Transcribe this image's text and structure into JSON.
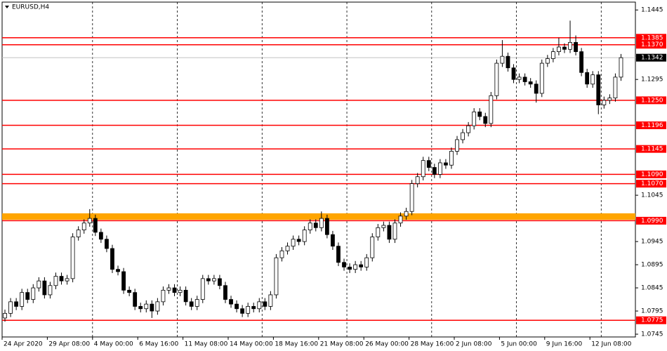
{
  "chart_data": {
    "type": "candlestick",
    "title": "EURUSD,H4",
    "categories": [
      "24 Apr 2020",
      null,
      null,
      null,
      null,
      null,
      null,
      null,
      "29 Apr 08:00",
      null,
      null,
      null,
      null,
      null,
      null,
      null,
      "4 May 00:00",
      null,
      null,
      null,
      null,
      null,
      null,
      null,
      "6 May 16:00",
      null,
      null,
      null,
      null,
      null,
      null,
      null,
      "11 May 08:00",
      null,
      null,
      null,
      null,
      null,
      null,
      null,
      "14 May 00:00",
      null,
      null,
      null,
      null,
      null,
      null,
      null,
      "18 May 16:00",
      null,
      null,
      null,
      null,
      null,
      null,
      null,
      "21 May 08:00",
      null,
      null,
      null,
      null,
      null,
      null,
      null,
      "26 May 00:00",
      null,
      null,
      null,
      null,
      null,
      null,
      null,
      "28 May 16:00",
      null,
      null,
      null,
      null,
      null,
      null,
      null,
      "2 Jun 08:00",
      null,
      null,
      null,
      null,
      null,
      null,
      null,
      "5 Jun 00:00",
      null,
      null,
      null,
      null,
      null,
      null,
      null,
      "9 Jun 16:00",
      null,
      null,
      null,
      null,
      null,
      null,
      null,
      "12 Jun 08:00",
      null,
      null,
      null,
      null,
      null
    ],
    "open": [
      1.078,
      1.079,
      1.0815,
      1.0805,
      1.0835,
      1.082,
      1.0845,
      1.086,
      1.083,
      1.085,
      1.087,
      1.086,
      1.0865,
      1.0955,
      1.097,
      1.0985,
      1.0995,
      1.0965,
      1.095,
      1.093,
      1.0885,
      1.088,
      1.084,
      1.0835,
      1.0805,
      1.08,
      1.081,
      1.0795,
      1.0815,
      1.084,
      1.0845,
      1.0835,
      1.084,
      1.0815,
      1.0805,
      1.082,
      1.0865,
      1.086,
      1.0865,
      1.085,
      1.082,
      1.081,
      1.08,
      1.079,
      1.0805,
      1.08,
      1.0815,
      1.0805,
      1.083,
      1.091,
      1.0925,
      1.0935,
      1.095,
      1.0945,
      1.097,
      1.0985,
      1.0975,
      1.0995,
      1.096,
      1.0935,
      1.09,
      1.089,
      1.0885,
      1.0895,
      1.089,
      1.091,
      1.0955,
      1.0975,
      1.098,
      1.095,
      1.0985,
      1.1,
      1.101,
      1.107,
      1.1085,
      1.112,
      1.1105,
      1.109,
      1.1115,
      1.111,
      1.114,
      1.1165,
      1.118,
      1.1195,
      1.1225,
      1.1215,
      1.12,
      1.126,
      1.133,
      1.1345,
      1.132,
      1.1295,
      1.13,
      1.129,
      1.1285,
      1.1265,
      1.133,
      1.134,
      1.1355,
      1.1365,
      1.136,
      1.1375,
      1.1355,
      1.131,
      1.1285,
      1.1305,
      1.124,
      1.125,
      1.1255,
      1.13
    ],
    "high": [
      1.0798,
      1.0823,
      1.0823,
      1.0843,
      1.0843,
      1.0853,
      1.0868,
      1.0868,
      1.0858,
      1.0878,
      1.0878,
      1.0873,
      1.0963,
      1.0978,
      1.0993,
      1.1015,
      1.1003,
      1.0973,
      1.0958,
      1.0938,
      1.0893,
      1.0888,
      1.0848,
      1.0843,
      1.0813,
      1.0818,
      1.0818,
      1.0823,
      1.0848,
      1.0853,
      1.0853,
      1.0848,
      1.0848,
      1.0823,
      1.0828,
      1.0873,
      1.0873,
      1.0873,
      1.0873,
      1.0858,
      1.0828,
      1.0818,
      1.0808,
      1.0813,
      1.0813,
      1.0823,
      1.0823,
      1.0838,
      1.0918,
      1.0933,
      1.0943,
      1.0958,
      1.0958,
      1.0978,
      1.0993,
      1.0993,
      1.101,
      1.1003,
      1.0968,
      1.0943,
      1.0908,
      1.0898,
      1.0903,
      1.0903,
      1.0918,
      1.0963,
      1.0983,
      1.0988,
      1.0988,
      1.0993,
      1.1008,
      1.1018,
      1.1078,
      1.1093,
      1.1128,
      1.1128,
      1.1113,
      1.1123,
      1.1123,
      1.1148,
      1.1173,
      1.1188,
      1.1203,
      1.1233,
      1.1233,
      1.1223,
      1.1268,
      1.1338,
      1.138,
      1.1353,
      1.1328,
      1.1308,
      1.1308,
      1.1298,
      1.1293,
      1.1338,
      1.1348,
      1.1363,
      1.1385,
      1.1373,
      1.1422,
      1.139,
      1.1363,
      1.1318,
      1.1313,
      1.1313,
      1.1258,
      1.1263,
      1.1308,
      1.135
    ],
    "low": [
      1.0772,
      1.0782,
      1.0797,
      1.0797,
      1.0812,
      1.0812,
      1.0837,
      1.0822,
      1.0822,
      1.0842,
      1.0852,
      1.0852,
      1.0857,
      1.0947,
      1.0962,
      1.0977,
      1.0957,
      1.0942,
      1.0922,
      1.0877,
      1.0872,
      1.0832,
      1.0827,
      1.0797,
      1.0792,
      1.0792,
      1.078,
      1.0787,
      1.0807,
      1.0832,
      1.0827,
      1.0827,
      1.0807,
      1.0797,
      1.0797,
      1.0812,
      1.0852,
      1.0852,
      1.0842,
      1.0812,
      1.0802,
      1.0792,
      1.0782,
      1.0782,
      1.0792,
      1.0792,
      1.0797,
      1.0797,
      1.0822,
      1.0902,
      1.0917,
      1.0927,
      1.0937,
      1.0937,
      1.0962,
      1.0967,
      1.0967,
      1.0952,
      1.0927,
      1.0892,
      1.0882,
      1.0877,
      1.0877,
      1.0882,
      1.0882,
      1.0902,
      1.0947,
      1.0967,
      1.0942,
      1.0942,
      1.0977,
      1.0992,
      1.1002,
      1.1062,
      1.1077,
      1.1097,
      1.1082,
      1.1082,
      1.1102,
      1.1102,
      1.1132,
      1.1157,
      1.1172,
      1.1187,
      1.1207,
      1.1192,
      1.1192,
      1.1252,
      1.1322,
      1.1312,
      1.1287,
      1.1287,
      1.1282,
      1.1277,
      1.1245,
      1.1257,
      1.1322,
      1.1332,
      1.1347,
      1.1352,
      1.1352,
      1.1347,
      1.1302,
      1.1277,
      1.1277,
      1.122,
      1.1232,
      1.1242,
      1.1247,
      1.1292
    ],
    "close": [
      1.079,
      1.0815,
      1.0805,
      1.0835,
      1.082,
      1.0845,
      1.086,
      1.083,
      1.085,
      1.087,
      1.086,
      1.0865,
      1.0955,
      1.097,
      1.0985,
      1.0995,
      1.0965,
      1.095,
      1.093,
      1.0885,
      1.088,
      1.084,
      1.0835,
      1.0805,
      1.08,
      1.081,
      1.0795,
      1.0815,
      1.084,
      1.0845,
      1.0835,
      1.084,
      1.0815,
      1.0805,
      1.082,
      1.0865,
      1.086,
      1.0865,
      1.085,
      1.082,
      1.081,
      1.08,
      1.079,
      1.0805,
      1.08,
      1.0815,
      1.0805,
      1.083,
      1.091,
      1.0925,
      1.0935,
      1.095,
      1.0945,
      1.097,
      1.0985,
      1.0975,
      1.0995,
      1.096,
      1.0935,
      1.09,
      1.089,
      1.0885,
      1.0895,
      1.089,
      1.091,
      1.0955,
      1.0975,
      1.098,
      1.095,
      1.0985,
      1.1,
      1.101,
      1.107,
      1.1085,
      1.112,
      1.1105,
      1.109,
      1.1115,
      1.111,
      1.114,
      1.1165,
      1.118,
      1.1195,
      1.1225,
      1.1215,
      1.12,
      1.126,
      1.133,
      1.1345,
      1.132,
      1.1295,
      1.13,
      1.129,
      1.1285,
      1.1265,
      1.133,
      1.134,
      1.1355,
      1.1365,
      1.136,
      1.1375,
      1.1355,
      1.131,
      1.1285,
      1.1305,
      1.124,
      1.125,
      1.1255,
      1.13,
      1.1342
    ],
    "ylim": [
      1.0739,
      1.1462
    ],
    "yticks": [
      1.1445,
      1.1295,
      1.1045,
      1.0945,
      1.0895,
      1.0845,
      1.0795,
      1.0745
    ],
    "levels": [
      {
        "value": 1.1385,
        "label": "1.1385"
      },
      {
        "value": 1.137,
        "label": "1.1370"
      },
      {
        "value": 1.125,
        "label": "1.1250"
      },
      {
        "value": 1.1196,
        "label": "1.1196"
      },
      {
        "value": 1.1145,
        "label": "1.1145"
      },
      {
        "value": 1.109,
        "label": "1.1090"
      },
      {
        "value": 1.107,
        "label": "1.1070"
      },
      {
        "value": 1.099,
        "label": "1.0990"
      },
      {
        "value": 1.0775,
        "label": "1.0775"
      }
    ],
    "level_color": "#ff0000",
    "zone": [
      1.0992,
      1.1006
    ],
    "zone_color": "#ffa500",
    "current_price": {
      "value": 1.1342,
      "label": "1.1342"
    },
    "up_color": "#ffffff",
    "down_color": "#000000",
    "grid": true
  }
}
